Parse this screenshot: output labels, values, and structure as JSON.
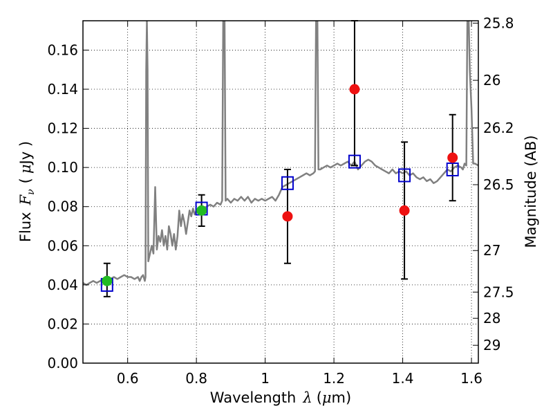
{
  "chart_data": {
    "type": "scatter",
    "title": "",
    "xlabel": "Wavelength",
    "xlabel_symbol": "λ",
    "xlabel_unit_open": "(",
    "xlabel_unit_mu": "μ",
    "xlabel_unit_rest": "m)",
    "ylabel": "Flux",
    "ylabel_symbol": "F",
    "ylabel_subscript": "ν",
    "ylabel_unit_open": "(",
    "ylabel_unit_mu": "μ",
    "ylabel_unit_rest": "Jy )",
    "y2label": "Magnitude (AB)",
    "xlim": [
      0.47,
      1.62
    ],
    "ylim": [
      0.0,
      0.175
    ],
    "xticks": [
      0.6,
      0.8,
      1.0,
      1.2,
      1.4,
      1.6
    ],
    "xtick_labels": [
      "0.6",
      "0.8",
      "1",
      "1.2",
      "1.4",
      "1.6"
    ],
    "yticks": [
      0.0,
      0.02,
      0.04,
      0.06,
      0.08,
      0.1,
      0.12,
      0.14,
      0.16
    ],
    "ytick_labels": [
      "0.00",
      "0.02",
      "0.04",
      "0.06",
      "0.08",
      "0.10",
      "0.12",
      "0.14",
      "0.16"
    ],
    "y2ticks": [
      {
        "label": "25.8",
        "value": 25.8
      },
      {
        "label": "26",
        "value": 26.0
      },
      {
        "label": "26.2",
        "value": 26.2
      },
      {
        "label": "26.5",
        "value": 26.5
      },
      {
        "label": "27",
        "value": 27.0
      },
      {
        "label": "27.5",
        "value": 27.5
      },
      {
        "label": "28",
        "value": 28.0
      },
      {
        "label": "29",
        "value": 29.0
      }
    ],
    "grid": true,
    "series": [
      {
        "kind": "line",
        "color": "#808080",
        "points": [
          [
            0.47,
            0.041
          ],
          [
            0.48,
            0.04
          ],
          [
            0.49,
            0.041
          ],
          [
            0.5,
            0.042
          ],
          [
            0.51,
            0.041
          ],
          [
            0.52,
            0.042
          ],
          [
            0.53,
            0.043
          ],
          [
            0.54,
            0.042
          ],
          [
            0.55,
            0.043
          ],
          [
            0.56,
            0.044
          ],
          [
            0.57,
            0.043
          ],
          [
            0.58,
            0.044
          ],
          [
            0.59,
            0.045
          ],
          [
            0.6,
            0.044
          ],
          [
            0.61,
            0.044
          ],
          [
            0.62,
            0.043
          ],
          [
            0.63,
            0.044
          ],
          [
            0.635,
            0.042
          ],
          [
            0.64,
            0.044
          ],
          [
            0.645,
            0.045
          ],
          [
            0.65,
            0.042
          ],
          [
            0.652,
            0.044
          ],
          [
            0.654,
            0.15
          ],
          [
            0.656,
            0.175
          ],
          [
            0.658,
            0.15
          ],
          [
            0.66,
            0.052
          ],
          [
            0.665,
            0.056
          ],
          [
            0.67,
            0.06
          ],
          [
            0.675,
            0.056
          ],
          [
            0.68,
            0.09
          ],
          [
            0.685,
            0.058
          ],
          [
            0.69,
            0.065
          ],
          [
            0.695,
            0.062
          ],
          [
            0.7,
            0.068
          ],
          [
            0.705,
            0.06
          ],
          [
            0.71,
            0.065
          ],
          [
            0.715,
            0.058
          ],
          [
            0.72,
            0.07
          ],
          [
            0.725,
            0.066
          ],
          [
            0.73,
            0.06
          ],
          [
            0.735,
            0.066
          ],
          [
            0.74,
            0.058
          ],
          [
            0.745,
            0.065
          ],
          [
            0.75,
            0.078
          ],
          [
            0.755,
            0.07
          ],
          [
            0.76,
            0.076
          ],
          [
            0.765,
            0.072
          ],
          [
            0.77,
            0.066
          ],
          [
            0.775,
            0.072
          ],
          [
            0.78,
            0.078
          ],
          [
            0.785,
            0.075
          ],
          [
            0.79,
            0.079
          ],
          [
            0.795,
            0.076
          ],
          [
            0.8,
            0.078
          ],
          [
            0.81,
            0.077
          ],
          [
            0.82,
            0.079
          ],
          [
            0.83,
            0.08
          ],
          [
            0.84,
            0.081
          ],
          [
            0.85,
            0.08
          ],
          [
            0.86,
            0.082
          ],
          [
            0.87,
            0.081
          ],
          [
            0.875,
            0.083
          ],
          [
            0.878,
            0.175
          ],
          [
            0.882,
            0.175
          ],
          [
            0.885,
            0.083
          ],
          [
            0.89,
            0.084
          ],
          [
            0.9,
            0.082
          ],
          [
            0.91,
            0.084
          ],
          [
            0.92,
            0.083
          ],
          [
            0.93,
            0.085
          ],
          [
            0.94,
            0.083
          ],
          [
            0.95,
            0.085
          ],
          [
            0.96,
            0.082
          ],
          [
            0.97,
            0.084
          ],
          [
            0.98,
            0.083
          ],
          [
            0.99,
            0.084
          ],
          [
            1.0,
            0.083
          ],
          [
            1.01,
            0.084
          ],
          [
            1.02,
            0.085
          ],
          [
            1.03,
            0.083
          ],
          [
            1.04,
            0.086
          ],
          [
            1.05,
            0.09
          ],
          [
            1.06,
            0.091
          ],
          [
            1.07,
            0.092
          ],
          [
            1.08,
            0.093
          ],
          [
            1.09,
            0.094
          ],
          [
            1.1,
            0.095
          ],
          [
            1.11,
            0.096
          ],
          [
            1.12,
            0.097
          ],
          [
            1.13,
            0.096
          ],
          [
            1.14,
            0.097
          ],
          [
            1.145,
            0.098
          ],
          [
            1.148,
            0.175
          ],
          [
            1.152,
            0.175
          ],
          [
            1.155,
            0.099
          ],
          [
            1.16,
            0.099
          ],
          [
            1.17,
            0.1
          ],
          [
            1.18,
            0.101
          ],
          [
            1.19,
            0.1
          ],
          [
            1.2,
            0.101
          ],
          [
            1.21,
            0.102
          ],
          [
            1.22,
            0.101
          ],
          [
            1.23,
            0.102
          ],
          [
            1.24,
            0.103
          ],
          [
            1.25,
            0.101
          ],
          [
            1.26,
            0.103
          ],
          [
            1.27,
            0.099
          ],
          [
            1.28,
            0.101
          ],
          [
            1.29,
            0.103
          ],
          [
            1.3,
            0.104
          ],
          [
            1.31,
            0.103
          ],
          [
            1.32,
            0.101
          ],
          [
            1.33,
            0.1
          ],
          [
            1.34,
            0.099
          ],
          [
            1.35,
            0.098
          ],
          [
            1.36,
            0.097
          ],
          [
            1.37,
            0.099
          ],
          [
            1.38,
            0.097
          ],
          [
            1.39,
            0.098
          ],
          [
            1.4,
            0.097
          ],
          [
            1.41,
            0.098
          ],
          [
            1.42,
            0.096
          ],
          [
            1.43,
            0.097
          ],
          [
            1.44,
            0.095
          ],
          [
            1.45,
            0.094
          ],
          [
            1.46,
            0.095
          ],
          [
            1.47,
            0.093
          ],
          [
            1.48,
            0.094
          ],
          [
            1.49,
            0.092
          ],
          [
            1.5,
            0.093
          ],
          [
            1.51,
            0.095
          ],
          [
            1.52,
            0.097
          ],
          [
            1.53,
            0.099
          ],
          [
            1.54,
            0.098
          ],
          [
            1.55,
            0.1
          ],
          [
            1.56,
            0.101
          ],
          [
            1.57,
            0.1
          ],
          [
            1.575,
            0.099
          ],
          [
            1.58,
            0.102
          ],
          [
            1.585,
            0.101
          ],
          [
            1.588,
            0.175
          ],
          [
            1.592,
            0.175
          ],
          [
            1.595,
            0.15
          ],
          [
            1.6,
            0.13
          ],
          [
            1.605,
            0.102
          ],
          [
            1.61,
            0.102
          ],
          [
            1.62,
            0.101
          ]
        ]
      },
      {
        "kind": "open-square",
        "color": "#0000cc",
        "points": [
          {
            "x": 0.54,
            "y": 0.04
          },
          {
            "x": 0.815,
            "y": 0.079
          },
          {
            "x": 1.065,
            "y": 0.092
          },
          {
            "x": 1.26,
            "y": 0.103
          },
          {
            "x": 1.405,
            "y": 0.096
          },
          {
            "x": 1.545,
            "y": 0.099
          }
        ]
      },
      {
        "kind": "filled-circle",
        "color": "#22bb22",
        "points": [
          {
            "x": 0.54,
            "y": 0.042,
            "yerr_low": 0.034,
            "yerr_high": 0.051
          },
          {
            "x": 0.815,
            "y": 0.078,
            "yerr_low": 0.07,
            "yerr_high": 0.086
          }
        ]
      },
      {
        "kind": "filled-circle",
        "color": "#ee1111",
        "points": [
          {
            "x": 1.065,
            "y": 0.075,
            "yerr_low": 0.051,
            "yerr_high": 0.099
          },
          {
            "x": 1.26,
            "y": 0.14,
            "yerr_low": 0.101,
            "yerr_high": 0.175
          },
          {
            "x": 1.405,
            "y": 0.078,
            "yerr_low": 0.043,
            "yerr_high": 0.113
          },
          {
            "x": 1.545,
            "y": 0.105,
            "yerr_low": 0.083,
            "yerr_high": 0.127
          }
        ]
      }
    ]
  }
}
